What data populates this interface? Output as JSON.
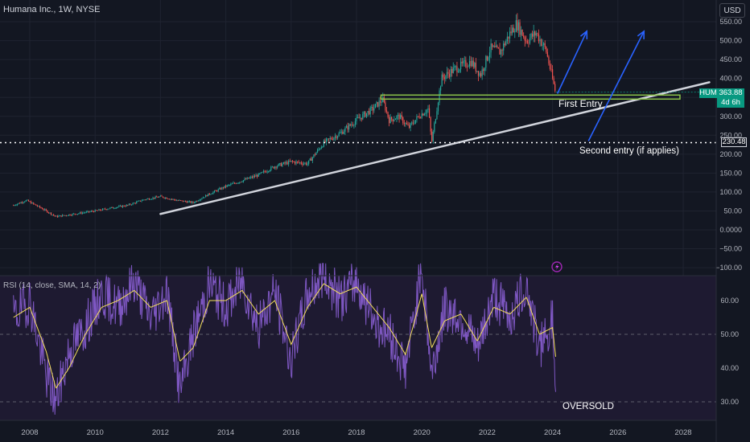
{
  "header": {
    "symbol_line": "Humana Inc., 1W, NYSE",
    "currency": "USD"
  },
  "price_axis": {
    "ticks": [
      "550.00",
      "500.00",
      "450.00",
      "400.00",
      "350.00",
      "300.00",
      "250.00",
      "200.00",
      "150.00",
      "100.00",
      "50.00",
      "0.0000",
      "−50.00",
      "−100.00"
    ]
  },
  "rsi_axis": {
    "ticks": [
      "60.00",
      "50.00",
      "40.00",
      "30.00"
    ]
  },
  "time_axis": {
    "ticks": [
      "2008",
      "2010",
      "2012",
      "2014",
      "2016",
      "2018",
      "2020",
      "2022",
      "2024",
      "2026",
      "2028"
    ]
  },
  "price_tags": {
    "symbol": "HUM",
    "last": "363.88",
    "countdown": "4d 6h",
    "level": "230.48",
    "colors": {
      "symbol": "#089981",
      "level_bg": "#131722"
    }
  },
  "annotations": {
    "first_entry": "First Entry",
    "second_entry": "Second entry (if applies)",
    "oversold": "OVERSOLD"
  },
  "rsi": {
    "label": "RSI (14, close, SMA, 14, 2)"
  },
  "colors": {
    "up": "#26a69a",
    "down": "#ef5350",
    "trendline": "#d1d4dc",
    "zone": "#8bc34a",
    "arrow": "#2962ff",
    "rsi": "#7e57c2",
    "rsi_ma": "#f5e15a"
  },
  "chart_data": [
    {
      "type": "line",
      "title": "Humana Inc., 1W, NYSE",
      "xlabel": "",
      "ylabel": "",
      "x_unit": "year",
      "ylim": [
        -100,
        560
      ],
      "xlim": [
        2007.5,
        2029
      ],
      "series": [
        {
          "x": [
            2007.5,
            2007.9,
            2008.4,
            2008.8,
            2009.2,
            2009.6,
            2010.0,
            2010.5,
            2011.0,
            2011.5,
            2012.0,
            2012.5,
            2013.0,
            2013.5,
            2014.0,
            2014.5,
            2015.0,
            2015.5,
            2016.0,
            2016.5,
            2017.0,
            2017.5,
            2018.0,
            2018.5,
            2018.8,
            2019.0,
            2019.3,
            2019.6,
            2019.9,
            2020.2,
            2020.3,
            2020.6,
            2021.0,
            2021.5,
            2021.8,
            2022.1,
            2022.4,
            2022.7,
            2022.9,
            2023.2,
            2023.5,
            2023.8,
            2024.1
          ],
          "y": [
            65,
            78,
            55,
            35,
            40,
            45,
            50,
            58,
            65,
            80,
            88,
            78,
            72,
            95,
            115,
            130,
            145,
            168,
            180,
            175,
            230,
            255,
            290,
            320,
            345,
            290,
            300,
            270,
            300,
            320,
            230,
            400,
            425,
            445,
            410,
            480,
            470,
            520,
            545,
            500,
            520,
            475,
            360
          ]
        }
      ],
      "annotations": [
        "First Entry",
        "Second entry (if applies)"
      ],
      "levels": {
        "support_zone": 352,
        "dotted_level": 230.48,
        "last_price": 363.88
      },
      "trendline": {
        "from": [
          2012,
          42
        ],
        "to": [
          2028.8,
          390
        ]
      }
    },
    {
      "type": "line",
      "title": "",
      "xlabel": "",
      "ylabel": "",
      "x_unit": "year",
      "ylim": [
        25,
        72
      ],
      "xlim": [
        2007.5,
        2029
      ],
      "series": [
        {
          "name": "RSI",
          "x": [
            2007.5,
            2008.0,
            2008.5,
            2008.8,
            2009.2,
            2009.7,
            2010.2,
            2010.7,
            2011.2,
            2011.7,
            2012.2,
            2012.6,
            2013.0,
            2013.5,
            2014.0,
            2014.5,
            2015.0,
            2015.5,
            2016.0,
            2016.5,
            2017.0,
            2017.5,
            2018.0,
            2018.5,
            2019.0,
            2019.5,
            2020.0,
            2020.3,
            2020.7,
            2021.2,
            2021.7,
            2022.2,
            2022.7,
            2023.2,
            2023.6,
            2024.0,
            2024.1
          ],
          "y": [
            55,
            60,
            38,
            30,
            45,
            52,
            62,
            58,
            66,
            55,
            63,
            33,
            50,
            65,
            58,
            66,
            52,
            63,
            42,
            62,
            68,
            60,
            66,
            55,
            50,
            40,
            70,
            38,
            58,
            55,
            45,
            62,
            55,
            65,
            45,
            55,
            26
          ]
        },
        {
          "name": "",
          "x": [
            2007.5,
            2008.0,
            2008.5,
            2008.8,
            2009.2,
            2009.7,
            2010.2,
            2010.7,
            2011.2,
            2011.7,
            2012.2,
            2012.6,
            2013.0,
            2013.5,
            2014.0,
            2014.5,
            2015.0,
            2015.5,
            2016.0,
            2016.5,
            2017.0,
            2017.5,
            2018.0,
            2018.5,
            2019.0,
            2019.5,
            2020.0,
            2020.3,
            2020.7,
            2021.2,
            2021.7,
            2022.2,
            2022.7,
            2023.2,
            2023.6,
            2024.0,
            2024.1
          ],
          "y": [
            55,
            58,
            45,
            34,
            40,
            50,
            58,
            60,
            63,
            58,
            60,
            42,
            46,
            60,
            60,
            63,
            56,
            60,
            47,
            58,
            65,
            62,
            64,
            58,
            52,
            44,
            62,
            46,
            54,
            56,
            48,
            58,
            56,
            61,
            50,
            52,
            43
          ]
        }
      ],
      "reference_lines": [
        50,
        30
      ],
      "annotations": [
        "OVERSOLD"
      ]
    }
  ]
}
